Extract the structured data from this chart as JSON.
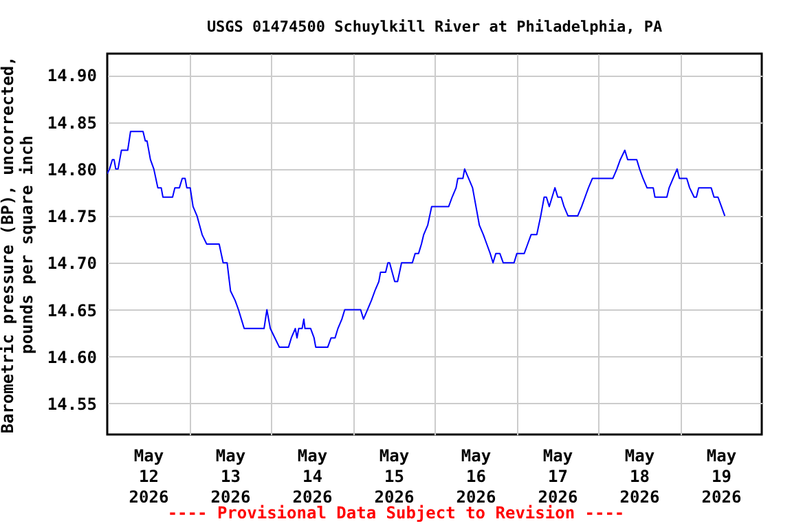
{
  "chart_data": {
    "type": "line",
    "title": "USGS 01474500 Schuylkill River at Philadelphia, PA",
    "ylabel": "Barometric pressure (BP), uncorrected, pounds per square inch",
    "annotations": [
      "---- Provisional Data Subject to Revision ----"
    ],
    "xlim": [
      "2026-05-12T00:00",
      "2026-05-20T00:00"
    ],
    "xticks": [
      {
        "value": "2026-05-12T12:00",
        "label": "May 12 2026"
      },
      {
        "value": "2026-05-13T12:00",
        "label": "May 13 2026"
      },
      {
        "value": "2026-05-14T12:00",
        "label": "May 14 2026"
      },
      {
        "value": "2026-05-15T12:00",
        "label": "May 15 2026"
      },
      {
        "value": "2026-05-16T12:00",
        "label": "May 16 2026"
      },
      {
        "value": "2026-05-17T12:00",
        "label": "May 17 2026"
      },
      {
        "value": "2026-05-18T12:00",
        "label": "May 18 2026"
      },
      {
        "value": "2026-05-19T12:00",
        "label": "May 19 2026"
      },
      {
        "value": "2026-05-13T00:00",
        "label": null
      },
      {
        "value": "2026-05-14T00:00",
        "label": null
      },
      {
        "value": "2026-05-15T00:00",
        "label": null
      },
      {
        "value": "2026-05-16T00:00",
        "label": null
      },
      {
        "value": "2026-05-17T00:00",
        "label": null
      },
      {
        "value": "2026-05-18T00:00",
        "label": null
      },
      {
        "value": "2026-05-19T00:00",
        "label": null
      }
    ],
    "ylim": [
      14.517,
      14.923
    ],
    "yticks": [
      {
        "value": 14.55,
        "label": "14.55"
      },
      {
        "value": 14.6,
        "label": "14.60"
      },
      {
        "value": 14.65,
        "label": "14.65"
      },
      {
        "value": 14.7,
        "label": "14.70"
      },
      {
        "value": 14.75,
        "label": "14.75"
      },
      {
        "value": 14.8,
        "label": "14.80"
      },
      {
        "value": 14.85,
        "label": "14.85"
      },
      {
        "value": 14.9,
        "label": "14.90"
      }
    ],
    "grid": true,
    "series": [
      {
        "color": "#0000ff",
        "x": [
          "2026-05-12T00:00",
          "2026-05-12T00:40",
          "2026-05-12T01:30",
          "2026-05-12T02:00",
          "2026-05-12T02:30",
          "2026-05-12T03:10",
          "2026-05-12T03:40",
          "2026-05-12T04:10",
          "2026-05-12T06:00",
          "2026-05-12T06:50",
          "2026-05-12T10:30",
          "2026-05-12T11:10",
          "2026-05-12T11:40",
          "2026-05-12T12:40",
          "2026-05-12T13:40",
          "2026-05-12T14:50",
          "2026-05-12T15:50",
          "2026-05-12T16:20",
          "2026-05-12T19:10",
          "2026-05-12T19:50",
          "2026-05-12T21:10",
          "2026-05-12T22:00",
          "2026-05-12T22:50",
          "2026-05-12T23:20",
          "2026-05-13T00:20",
          "2026-05-13T01:10",
          "2026-05-13T02:20",
          "2026-05-13T03:50",
          "2026-05-13T05:10",
          "2026-05-13T08:50",
          "2026-05-13T10:00",
          "2026-05-13T11:10",
          "2026-05-13T12:10",
          "2026-05-13T13:30",
          "2026-05-13T14:30",
          "2026-05-13T15:20",
          "2026-05-13T16:10",
          "2026-05-13T22:00",
          "2026-05-13T22:50",
          "2026-05-13T23:50",
          "2026-05-14T01:10",
          "2026-05-14T02:30",
          "2026-05-14T05:10",
          "2026-05-14T06:00",
          "2026-05-14T07:10",
          "2026-05-14T07:40",
          "2026-05-14T08:10",
          "2026-05-14T09:10",
          "2026-05-14T09:40",
          "2026-05-14T10:00",
          "2026-05-14T11:40",
          "2026-05-14T12:40",
          "2026-05-14T13:10",
          "2026-05-14T16:40",
          "2026-05-14T17:40",
          "2026-05-14T18:50",
          "2026-05-14T19:40",
          "2026-05-14T20:50",
          "2026-05-14T21:40",
          "2026-05-15T02:20",
          "2026-05-15T03:10",
          "2026-05-15T04:20",
          "2026-05-15T05:30",
          "2026-05-15T06:30",
          "2026-05-15T07:40",
          "2026-05-15T08:10",
          "2026-05-15T09:40",
          "2026-05-15T10:20",
          "2026-05-15T10:50",
          "2026-05-15T12:20",
          "2026-05-15T13:10",
          "2026-05-15T14:20",
          "2026-05-15T17:30",
          "2026-05-15T18:20",
          "2026-05-15T19:20",
          "2026-05-15T20:10",
          "2026-05-15T20:50",
          "2026-05-15T22:00",
          "2026-05-15T23:10",
          "2026-05-16T04:10",
          "2026-05-16T05:10",
          "2026-05-16T06:20",
          "2026-05-16T06:50",
          "2026-05-16T08:20",
          "2026-05-16T08:50",
          "2026-05-16T10:00",
          "2026-05-16T11:10",
          "2026-05-16T12:10",
          "2026-05-16T13:10",
          "2026-05-16T14:20",
          "2026-05-16T15:20",
          "2026-05-16T16:20",
          "2026-05-16T17:10",
          "2026-05-16T18:00",
          "2026-05-16T19:10",
          "2026-05-16T20:10",
          "2026-05-16T23:20",
          "2026-05-17T00:10",
          "2026-05-17T02:20",
          "2026-05-17T03:20",
          "2026-05-17T04:20",
          "2026-05-17T06:00",
          "2026-05-17T07:10",
          "2026-05-17T08:10",
          "2026-05-17T08:50",
          "2026-05-17T09:40",
          "2026-05-17T10:30",
          "2026-05-17T11:20",
          "2026-05-17T12:10",
          "2026-05-17T13:10",
          "2026-05-17T14:00",
          "2026-05-17T15:10",
          "2026-05-17T18:00",
          "2026-05-17T19:10",
          "2026-05-17T20:10",
          "2026-05-17T21:10",
          "2026-05-17T22:20",
          "2026-05-18T04:20",
          "2026-05-18T05:30",
          "2026-05-18T06:30",
          "2026-05-18T07:50",
          "2026-05-18T08:40",
          "2026-05-18T11:20",
          "2026-05-18T12:10",
          "2026-05-18T13:10",
          "2026-05-18T14:20",
          "2026-05-18T16:10",
          "2026-05-18T16:40",
          "2026-05-18T20:10",
          "2026-05-18T20:50",
          "2026-05-18T22:00",
          "2026-05-18T23:10",
          "2026-05-18T23:50",
          "2026-05-19T02:00",
          "2026-05-19T02:50",
          "2026-05-19T04:10",
          "2026-05-19T04:50",
          "2026-05-19T05:30",
          "2026-05-19T09:10",
          "2026-05-19T10:00",
          "2026-05-19T11:10",
          "2026-05-19T12:10",
          "2026-05-19T13:10"
        ],
        "values": [
          14.795,
          14.8,
          14.81,
          14.81,
          14.8,
          14.8,
          14.81,
          14.82,
          14.82,
          14.84,
          14.84,
          14.83,
          14.83,
          14.81,
          14.8,
          14.78,
          14.78,
          14.77,
          14.77,
          14.78,
          14.78,
          14.79,
          14.79,
          14.78,
          14.78,
          14.76,
          14.75,
          14.73,
          14.72,
          14.72,
          14.7,
          14.7,
          14.67,
          14.66,
          14.65,
          14.64,
          14.63,
          14.63,
          14.65,
          14.63,
          14.62,
          14.61,
          14.61,
          14.62,
          14.63,
          14.62,
          14.63,
          14.63,
          14.64,
          14.63,
          14.63,
          14.62,
          14.61,
          14.61,
          14.62,
          14.62,
          14.63,
          14.64,
          14.65,
          14.65,
          14.64,
          14.65,
          14.66,
          14.67,
          14.68,
          14.69,
          14.69,
          14.7,
          14.7,
          14.68,
          14.68,
          14.7,
          14.7,
          14.71,
          14.71,
          14.72,
          14.73,
          14.74,
          14.76,
          14.76,
          14.77,
          14.78,
          14.79,
          14.79,
          14.8,
          14.79,
          14.78,
          14.76,
          14.74,
          14.73,
          14.72,
          14.71,
          14.7,
          14.71,
          14.71,
          14.7,
          14.7,
          14.71,
          14.71,
          14.72,
          14.73,
          14.73,
          14.75,
          14.77,
          14.77,
          14.76,
          14.77,
          14.78,
          14.77,
          14.77,
          14.76,
          14.75,
          14.75,
          14.76,
          14.77,
          14.78,
          14.79,
          14.79,
          14.8,
          14.81,
          14.82,
          14.81,
          14.81,
          14.8,
          14.79,
          14.78,
          14.78,
          14.77,
          14.77,
          14.78,
          14.79,
          14.8,
          14.79,
          14.79,
          14.78,
          14.77,
          14.77,
          14.78,
          14.78,
          14.77,
          14.77,
          14.76,
          14.75
        ]
      }
    ]
  }
}
